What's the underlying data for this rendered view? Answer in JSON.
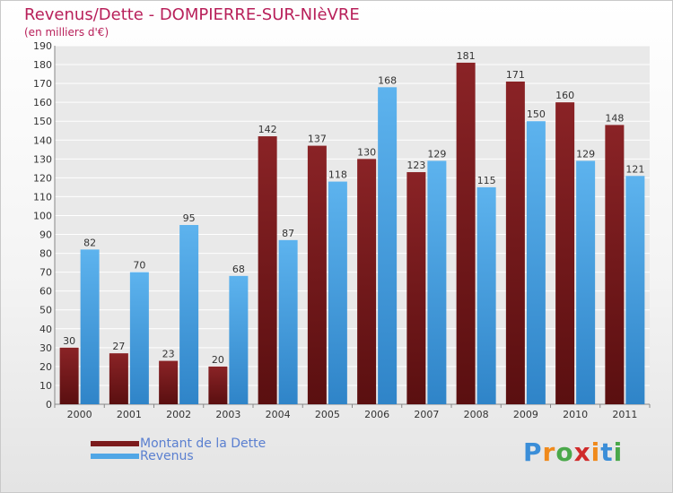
{
  "chart_data": {
    "type": "bar",
    "title": "Revenus/Dette - DOMPIERRE-SUR-NIèVRE",
    "subtitle": "(en milliers d'€)",
    "categories": [
      "2000",
      "2001",
      "2002",
      "2003",
      "2004",
      "2005",
      "2006",
      "2007",
      "2008",
      "2009",
      "2010",
      "2011"
    ],
    "series": [
      {
        "name": "Montant de la Dette",
        "color": "#7b1a1c",
        "values": [
          30,
          27,
          23,
          20,
          142,
          137,
          130,
          123,
          181,
          171,
          160,
          148
        ]
      },
      {
        "name": "Revenus",
        "color": "#4fa6e6",
        "values": [
          82,
          70,
          95,
          68,
          87,
          118,
          168,
          129,
          115,
          150,
          129,
          121
        ]
      }
    ],
    "ylim": [
      0,
      190
    ],
    "yticks": [
      0,
      10,
      20,
      30,
      40,
      50,
      60,
      70,
      80,
      90,
      100,
      110,
      120,
      130,
      140,
      150,
      160,
      170,
      180,
      190
    ],
    "grid": true,
    "legend_position": "bottom-left"
  },
  "logo": {
    "text": "Proxiti",
    "letters": [
      "P",
      "r",
      "o",
      "x",
      "i",
      "t",
      "i"
    ],
    "colors": [
      "#3b8ed8",
      "#f08a1c",
      "#4aa84a",
      "#d02a2a",
      "#f08a1c",
      "#3b8ed8",
      "#4aa84a"
    ]
  }
}
